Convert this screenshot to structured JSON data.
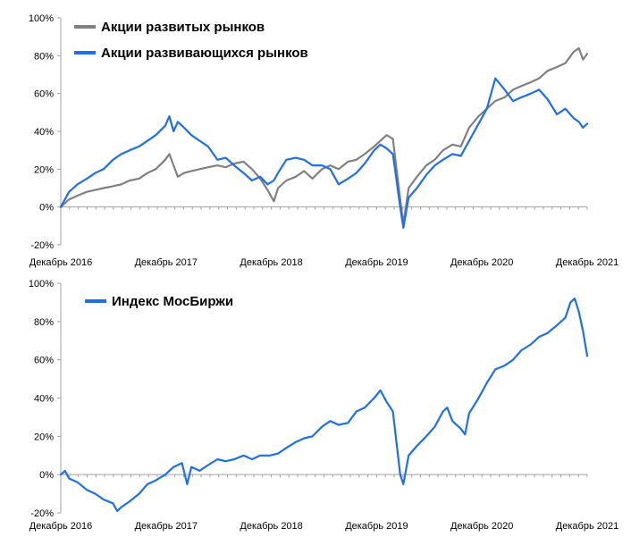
{
  "colors": {
    "developed": "#808080",
    "emerging": "#1f6fe8",
    "moex": "#1f6fe8"
  },
  "chart_data": [
    {
      "type": "line",
      "x_tick_labels": [
        "Декабрь 2016",
        "Декабрь 2017",
        "Декабрь 2018",
        "Декабрь 2019",
        "Декабрь 2020",
        "Декабрь 2021"
      ],
      "y_tick_labels": [
        "-20%",
        "0%",
        "20%",
        "40%",
        "60%",
        "80%",
        "100%"
      ],
      "ylim": [
        -20,
        100
      ],
      "xlim": [
        2016.92,
        2021.96
      ],
      "legend_position": "top",
      "series": [
        {
          "name": "Акции развитых рынков",
          "color": "#808080",
          "points": [
            [
              2016.92,
              0
            ],
            [
              2017.0,
              4
            ],
            [
              2017.08,
              6
            ],
            [
              2017.17,
              8
            ],
            [
              2017.25,
              9
            ],
            [
              2017.33,
              10
            ],
            [
              2017.42,
              11
            ],
            [
              2017.5,
              12
            ],
            [
              2017.58,
              14
            ],
            [
              2017.67,
              15
            ],
            [
              2017.75,
              18
            ],
            [
              2017.83,
              20
            ],
            [
              2017.92,
              25
            ],
            [
              2017.96,
              28
            ],
            [
              2018.0,
              22
            ],
            [
              2018.04,
              16
            ],
            [
              2018.1,
              18
            ],
            [
              2018.17,
              19
            ],
            [
              2018.25,
              20
            ],
            [
              2018.33,
              21
            ],
            [
              2018.42,
              22
            ],
            [
              2018.5,
              21
            ],
            [
              2018.58,
              23
            ],
            [
              2018.67,
              24
            ],
            [
              2018.75,
              20
            ],
            [
              2018.83,
              15
            ],
            [
              2018.9,
              9
            ],
            [
              2018.96,
              3
            ],
            [
              2019.0,
              10
            ],
            [
              2019.08,
              14
            ],
            [
              2019.17,
              16
            ],
            [
              2019.25,
              19
            ],
            [
              2019.33,
              15
            ],
            [
              2019.42,
              20
            ],
            [
              2019.5,
              22
            ],
            [
              2019.58,
              20
            ],
            [
              2019.67,
              24
            ],
            [
              2019.75,
              25
            ],
            [
              2019.83,
              28
            ],
            [
              2019.92,
              32
            ],
            [
              2019.98,
              35
            ],
            [
              2020.04,
              38
            ],
            [
              2020.1,
              36
            ],
            [
              2020.17,
              4
            ],
            [
              2020.2,
              -9
            ],
            [
              2020.25,
              10
            ],
            [
              2020.33,
              16
            ],
            [
              2020.42,
              22
            ],
            [
              2020.5,
              25
            ],
            [
              2020.58,
              30
            ],
            [
              2020.67,
              33
            ],
            [
              2020.75,
              32
            ],
            [
              2020.83,
              42
            ],
            [
              2020.92,
              48
            ],
            [
              2021.0,
              52
            ],
            [
              2021.08,
              56
            ],
            [
              2021.17,
              58
            ],
            [
              2021.25,
              62
            ],
            [
              2021.33,
              64
            ],
            [
              2021.42,
              66
            ],
            [
              2021.5,
              68
            ],
            [
              2021.58,
              72
            ],
            [
              2021.67,
              74
            ],
            [
              2021.75,
              76
            ],
            [
              2021.83,
              82
            ],
            [
              2021.88,
              84
            ],
            [
              2021.92,
              78
            ],
            [
              2021.96,
              81
            ]
          ]
        },
        {
          "name": "Акции развивающихся рынков",
          "color": "#1f6fe8",
          "points": [
            [
              2016.92,
              0
            ],
            [
              2017.0,
              8
            ],
            [
              2017.08,
              12
            ],
            [
              2017.17,
              15
            ],
            [
              2017.25,
              18
            ],
            [
              2017.33,
              20
            ],
            [
              2017.42,
              25
            ],
            [
              2017.5,
              28
            ],
            [
              2017.58,
              30
            ],
            [
              2017.67,
              32
            ],
            [
              2017.75,
              35
            ],
            [
              2017.83,
              38
            ],
            [
              2017.92,
              43
            ],
            [
              2017.96,
              48
            ],
            [
              2018.0,
              40
            ],
            [
              2018.04,
              45
            ],
            [
              2018.1,
              42
            ],
            [
              2018.17,
              38
            ],
            [
              2018.25,
              35
            ],
            [
              2018.33,
              32
            ],
            [
              2018.42,
              25
            ],
            [
              2018.5,
              26
            ],
            [
              2018.58,
              22
            ],
            [
              2018.67,
              18
            ],
            [
              2018.75,
              14
            ],
            [
              2018.83,
              16
            ],
            [
              2018.9,
              12
            ],
            [
              2018.96,
              14
            ],
            [
              2019.0,
              18
            ],
            [
              2019.08,
              25
            ],
            [
              2019.17,
              26
            ],
            [
              2019.25,
              25
            ],
            [
              2019.33,
              22
            ],
            [
              2019.42,
              22
            ],
            [
              2019.5,
              20
            ],
            [
              2019.58,
              12
            ],
            [
              2019.67,
              15
            ],
            [
              2019.75,
              18
            ],
            [
              2019.83,
              23
            ],
            [
              2019.92,
              30
            ],
            [
              2019.98,
              33
            ],
            [
              2020.04,
              31
            ],
            [
              2020.1,
              28
            ],
            [
              2020.17,
              0
            ],
            [
              2020.2,
              -11
            ],
            [
              2020.25,
              5
            ],
            [
              2020.33,
              10
            ],
            [
              2020.42,
              17
            ],
            [
              2020.5,
              22
            ],
            [
              2020.58,
              25
            ],
            [
              2020.67,
              28
            ],
            [
              2020.75,
              27
            ],
            [
              2020.83,
              35
            ],
            [
              2020.92,
              44
            ],
            [
              2021.0,
              52
            ],
            [
              2021.08,
              68
            ],
            [
              2021.17,
              62
            ],
            [
              2021.25,
              56
            ],
            [
              2021.33,
              58
            ],
            [
              2021.42,
              60
            ],
            [
              2021.5,
              62
            ],
            [
              2021.58,
              57
            ],
            [
              2021.67,
              49
            ],
            [
              2021.75,
              52
            ],
            [
              2021.83,
              47
            ],
            [
              2021.88,
              45
            ],
            [
              2021.92,
              42
            ],
            [
              2021.96,
              44
            ]
          ]
        }
      ]
    },
    {
      "type": "line",
      "x_tick_labels": [
        "Декабрь 2016",
        "Декабрь 2017",
        "Декабрь 2018",
        "Декабрь 2019",
        "Декабрь 2020",
        "Декабрь 2021"
      ],
      "y_tick_labels": [
        "-20%",
        "0%",
        "20%",
        "40%",
        "60%",
        "80%",
        "100%"
      ],
      "ylim": [
        -20,
        100
      ],
      "xlim": [
        2016.92,
        2021.96
      ],
      "legend_position": "top",
      "series": [
        {
          "name": "Индекс МосБиржи",
          "color": "#1f6fe8",
          "points": [
            [
              2016.92,
              0
            ],
            [
              2016.96,
              2
            ],
            [
              2017.0,
              -2
            ],
            [
              2017.08,
              -4
            ],
            [
              2017.17,
              -8
            ],
            [
              2017.25,
              -10
            ],
            [
              2017.33,
              -13
            ],
            [
              2017.42,
              -15
            ],
            [
              2017.46,
              -19
            ],
            [
              2017.5,
              -17
            ],
            [
              2017.58,
              -14
            ],
            [
              2017.67,
              -10
            ],
            [
              2017.75,
              -5
            ],
            [
              2017.83,
              -3
            ],
            [
              2017.92,
              0
            ],
            [
              2017.96,
              2
            ],
            [
              2018.0,
              4
            ],
            [
              2018.08,
              6
            ],
            [
              2018.13,
              -5
            ],
            [
              2018.17,
              4
            ],
            [
              2018.25,
              2
            ],
            [
              2018.33,
              5
            ],
            [
              2018.42,
              8
            ],
            [
              2018.5,
              7
            ],
            [
              2018.58,
              8
            ],
            [
              2018.67,
              10
            ],
            [
              2018.75,
              8
            ],
            [
              2018.83,
              10
            ],
            [
              2018.92,
              10
            ],
            [
              2019.0,
              11
            ],
            [
              2019.08,
              14
            ],
            [
              2019.17,
              17
            ],
            [
              2019.25,
              19
            ],
            [
              2019.33,
              20
            ],
            [
              2019.42,
              25
            ],
            [
              2019.5,
              28
            ],
            [
              2019.58,
              26
            ],
            [
              2019.67,
              27
            ],
            [
              2019.75,
              33
            ],
            [
              2019.83,
              35
            ],
            [
              2019.92,
              40
            ],
            [
              2019.98,
              44
            ],
            [
              2020.04,
              38
            ],
            [
              2020.1,
              33
            ],
            [
              2020.17,
              0
            ],
            [
              2020.2,
              -5
            ],
            [
              2020.25,
              10
            ],
            [
              2020.33,
              15
            ],
            [
              2020.42,
              20
            ],
            [
              2020.5,
              25
            ],
            [
              2020.58,
              33
            ],
            [
              2020.62,
              35
            ],
            [
              2020.67,
              28
            ],
            [
              2020.75,
              24
            ],
            [
              2020.79,
              21
            ],
            [
              2020.83,
              32
            ],
            [
              2020.92,
              40
            ],
            [
              2021.0,
              48
            ],
            [
              2021.08,
              55
            ],
            [
              2021.17,
              57
            ],
            [
              2021.25,
              60
            ],
            [
              2021.33,
              65
            ],
            [
              2021.42,
              68
            ],
            [
              2021.5,
              72
            ],
            [
              2021.58,
              74
            ],
            [
              2021.67,
              78
            ],
            [
              2021.75,
              82
            ],
            [
              2021.8,
              90
            ],
            [
              2021.84,
              92
            ],
            [
              2021.88,
              85
            ],
            [
              2021.92,
              75
            ],
            [
              2021.96,
              62
            ]
          ]
        }
      ]
    }
  ]
}
